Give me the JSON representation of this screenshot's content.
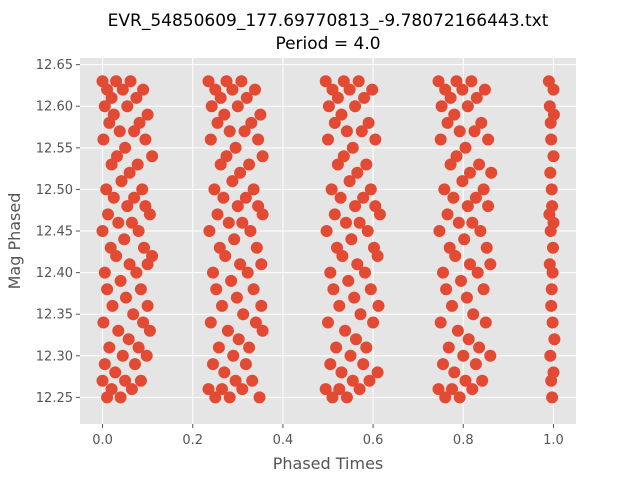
{
  "chart_data": {
    "type": "scatter",
    "title": "EVR_54850609_177.69770813_-9.78072166443.txt",
    "subtitle": "Period = 4.0",
    "xlabel": "Phased Times",
    "ylabel": "Mag Phased",
    "xlim": [
      -0.05,
      1.05
    ],
    "ylim": [
      12.218,
      12.658
    ],
    "xticks": [
      0.0,
      0.2,
      0.4,
      0.6,
      0.8,
      1.0
    ],
    "xtick_labels": [
      "0.0",
      "0.2",
      "0.4",
      "0.6",
      "0.8",
      "1.0"
    ],
    "yticks": [
      12.25,
      12.3,
      12.35,
      12.4,
      12.45,
      12.5,
      12.55,
      12.6,
      12.65
    ],
    "ytick_labels": [
      "12.25",
      "12.30",
      "12.35",
      "12.40",
      "12.45",
      "12.50",
      "12.55",
      "12.60",
      "12.65"
    ],
    "grid": true,
    "legend": "none",
    "colors": {
      "background": "#e5e5e5",
      "grid": "#ffffff",
      "marker": "#e24a33",
      "text": "#555555"
    },
    "series": [
      {
        "points": [
          [
            0.0,
            12.63
          ],
          [
            0.0,
            12.27
          ],
          [
            0.0,
            12.45
          ],
          [
            0.002,
            12.56
          ],
          [
            0.002,
            12.34
          ],
          [
            0.005,
            12.6
          ],
          [
            0.005,
            12.4
          ],
          [
            0.005,
            12.29
          ],
          [
            0.008,
            12.5
          ],
          [
            0.01,
            12.62
          ],
          [
            0.01,
            12.25
          ],
          [
            0.01,
            12.38
          ],
          [
            0.012,
            12.47
          ],
          [
            0.015,
            12.58
          ],
          [
            0.015,
            12.31
          ],
          [
            0.018,
            12.43
          ],
          [
            0.02,
            12.61
          ],
          [
            0.02,
            12.53
          ],
          [
            0.02,
            12.26
          ],
          [
            0.022,
            12.36
          ],
          [
            0.025,
            12.49
          ],
          [
            0.025,
            12.59
          ],
          [
            0.028,
            12.28
          ],
          [
            0.03,
            12.42
          ],
          [
            0.03,
            12.63
          ],
          [
            0.032,
            12.54
          ],
          [
            0.035,
            12.33
          ],
          [
            0.035,
            12.46
          ],
          [
            0.038,
            12.57
          ],
          [
            0.04,
            12.25
          ],
          [
            0.04,
            12.39
          ],
          [
            0.042,
            12.51
          ],
          [
            0.045,
            12.62
          ],
          [
            0.045,
            12.3
          ],
          [
            0.048,
            12.44
          ],
          [
            0.05,
            12.55
          ],
          [
            0.05,
            12.27
          ],
          [
            0.052,
            12.37
          ],
          [
            0.055,
            12.48
          ],
          [
            0.055,
            12.6
          ],
          [
            0.058,
            12.32
          ],
          [
            0.06,
            12.52
          ],
          [
            0.06,
            12.41
          ],
          [
            0.062,
            12.63
          ],
          [
            0.065,
            12.26
          ],
          [
            0.065,
            12.46
          ],
          [
            0.068,
            12.35
          ],
          [
            0.07,
            12.57
          ],
          [
            0.07,
            12.49
          ],
          [
            0.072,
            12.29
          ],
          [
            0.075,
            12.61
          ],
          [
            0.075,
            12.4
          ],
          [
            0.078,
            12.53
          ],
          [
            0.08,
            12.31
          ],
          [
            0.08,
            12.45
          ],
          [
            0.082,
            12.58
          ],
          [
            0.085,
            12.27
          ],
          [
            0.085,
            12.38
          ],
          [
            0.088,
            12.5
          ],
          [
            0.09,
            12.62
          ],
          [
            0.09,
            12.34
          ],
          [
            0.092,
            12.43
          ],
          [
            0.095,
            12.56
          ],
          [
            0.095,
            12.48
          ],
          [
            0.098,
            12.3
          ],
          [
            0.1,
            12.59
          ],
          [
            0.1,
            12.41
          ],
          [
            0.1,
            12.36
          ],
          [
            0.105,
            12.47
          ],
          [
            0.105,
            12.33
          ],
          [
            0.11,
            12.42
          ],
          [
            0.11,
            12.54
          ],
          [
            0.235,
            12.63
          ],
          [
            0.235,
            12.26
          ],
          [
            0.237,
            12.45
          ],
          [
            0.24,
            12.56
          ],
          [
            0.24,
            12.34
          ],
          [
            0.242,
            12.6
          ],
          [
            0.245,
            12.4
          ],
          [
            0.245,
            12.29
          ],
          [
            0.248,
            12.5
          ],
          [
            0.25,
            12.62
          ],
          [
            0.25,
            12.25
          ],
          [
            0.252,
            12.38
          ],
          [
            0.255,
            12.47
          ],
          [
            0.255,
            12.58
          ],
          [
            0.258,
            12.31
          ],
          [
            0.26,
            12.43
          ],
          [
            0.262,
            12.61
          ],
          [
            0.262,
            12.53
          ],
          [
            0.265,
            12.26
          ],
          [
            0.265,
            12.36
          ],
          [
            0.268,
            12.49
          ],
          [
            0.27,
            12.59
          ],
          [
            0.27,
            12.28
          ],
          [
            0.272,
            12.42
          ],
          [
            0.275,
            12.63
          ],
          [
            0.275,
            12.54
          ],
          [
            0.278,
            12.33
          ],
          [
            0.28,
            12.46
          ],
          [
            0.282,
            12.57
          ],
          [
            0.282,
            12.25
          ],
          [
            0.285,
            12.39
          ],
          [
            0.288,
            12.51
          ],
          [
            0.288,
            12.62
          ],
          [
            0.29,
            12.3
          ],
          [
            0.292,
            12.44
          ],
          [
            0.295,
            12.55
          ],
          [
            0.295,
            12.27
          ],
          [
            0.298,
            12.37
          ],
          [
            0.3,
            12.48
          ],
          [
            0.3,
            12.6
          ],
          [
            0.302,
            12.32
          ],
          [
            0.305,
            12.52
          ],
          [
            0.305,
            12.41
          ],
          [
            0.308,
            12.63
          ],
          [
            0.31,
            12.26
          ],
          [
            0.31,
            12.46
          ],
          [
            0.312,
            12.35
          ],
          [
            0.315,
            12.57
          ],
          [
            0.318,
            12.49
          ],
          [
            0.318,
            12.29
          ],
          [
            0.32,
            12.61
          ],
          [
            0.322,
            12.4
          ],
          [
            0.325,
            12.53
          ],
          [
            0.325,
            12.31
          ],
          [
            0.328,
            12.45
          ],
          [
            0.33,
            12.58
          ],
          [
            0.332,
            12.27
          ],
          [
            0.335,
            12.38
          ],
          [
            0.335,
            12.5
          ],
          [
            0.338,
            12.62
          ],
          [
            0.34,
            12.34
          ],
          [
            0.342,
            12.43
          ],
          [
            0.345,
            12.56
          ],
          [
            0.345,
            12.48
          ],
          [
            0.348,
            12.25
          ],
          [
            0.35,
            12.59
          ],
          [
            0.352,
            12.41
          ],
          [
            0.352,
            12.36
          ],
          [
            0.355,
            12.47
          ],
          [
            0.355,
            12.33
          ],
          [
            0.355,
            12.54
          ],
          [
            0.495,
            12.63
          ],
          [
            0.495,
            12.26
          ],
          [
            0.497,
            12.45
          ],
          [
            0.5,
            12.56
          ],
          [
            0.5,
            12.34
          ],
          [
            0.502,
            12.6
          ],
          [
            0.505,
            12.4
          ],
          [
            0.505,
            12.29
          ],
          [
            0.508,
            12.5
          ],
          [
            0.51,
            12.62
          ],
          [
            0.51,
            12.25
          ],
          [
            0.512,
            12.38
          ],
          [
            0.515,
            12.47
          ],
          [
            0.515,
            12.58
          ],
          [
            0.518,
            12.31
          ],
          [
            0.52,
            12.43
          ],
          [
            0.522,
            12.61
          ],
          [
            0.522,
            12.53
          ],
          [
            0.525,
            12.26
          ],
          [
            0.525,
            12.36
          ],
          [
            0.528,
            12.49
          ],
          [
            0.53,
            12.59
          ],
          [
            0.53,
            12.28
          ],
          [
            0.532,
            12.42
          ],
          [
            0.535,
            12.63
          ],
          [
            0.535,
            12.54
          ],
          [
            0.538,
            12.33
          ],
          [
            0.54,
            12.46
          ],
          [
            0.542,
            12.57
          ],
          [
            0.542,
            12.25
          ],
          [
            0.545,
            12.39
          ],
          [
            0.548,
            12.51
          ],
          [
            0.548,
            12.62
          ],
          [
            0.55,
            12.3
          ],
          [
            0.552,
            12.44
          ],
          [
            0.555,
            12.55
          ],
          [
            0.555,
            12.27
          ],
          [
            0.558,
            12.37
          ],
          [
            0.56,
            12.48
          ],
          [
            0.56,
            12.6
          ],
          [
            0.562,
            12.32
          ],
          [
            0.565,
            12.52
          ],
          [
            0.565,
            12.41
          ],
          [
            0.568,
            12.63
          ],
          [
            0.57,
            12.26
          ],
          [
            0.57,
            12.46
          ],
          [
            0.572,
            12.35
          ],
          [
            0.575,
            12.57
          ],
          [
            0.578,
            12.49
          ],
          [
            0.578,
            12.29
          ],
          [
            0.58,
            12.61
          ],
          [
            0.582,
            12.4
          ],
          [
            0.585,
            12.53
          ],
          [
            0.585,
            12.31
          ],
          [
            0.588,
            12.45
          ],
          [
            0.59,
            12.58
          ],
          [
            0.592,
            12.27
          ],
          [
            0.595,
            12.38
          ],
          [
            0.595,
            12.5
          ],
          [
            0.598,
            12.62
          ],
          [
            0.6,
            12.34
          ],
          [
            0.602,
            12.43
          ],
          [
            0.605,
            12.56
          ],
          [
            0.605,
            12.48
          ],
          [
            0.61,
            12.28
          ],
          [
            0.61,
            12.42
          ],
          [
            0.612,
            12.36
          ],
          [
            0.615,
            12.47
          ],
          [
            0.745,
            12.63
          ],
          [
            0.745,
            12.26
          ],
          [
            0.747,
            12.45
          ],
          [
            0.75,
            12.56
          ],
          [
            0.75,
            12.34
          ],
          [
            0.752,
            12.6
          ],
          [
            0.755,
            12.4
          ],
          [
            0.755,
            12.29
          ],
          [
            0.758,
            12.5
          ],
          [
            0.76,
            12.62
          ],
          [
            0.76,
            12.25
          ],
          [
            0.762,
            12.38
          ],
          [
            0.765,
            12.47
          ],
          [
            0.765,
            12.58
          ],
          [
            0.768,
            12.31
          ],
          [
            0.77,
            12.43
          ],
          [
            0.772,
            12.61
          ],
          [
            0.772,
            12.53
          ],
          [
            0.775,
            12.26
          ],
          [
            0.775,
            12.36
          ],
          [
            0.778,
            12.49
          ],
          [
            0.78,
            12.59
          ],
          [
            0.78,
            12.28
          ],
          [
            0.782,
            12.42
          ],
          [
            0.785,
            12.63
          ],
          [
            0.785,
            12.54
          ],
          [
            0.788,
            12.33
          ],
          [
            0.79,
            12.46
          ],
          [
            0.792,
            12.57
          ],
          [
            0.792,
            12.25
          ],
          [
            0.795,
            12.39
          ],
          [
            0.798,
            12.51
          ],
          [
            0.798,
            12.62
          ],
          [
            0.8,
            12.3
          ],
          [
            0.802,
            12.44
          ],
          [
            0.805,
            12.55
          ],
          [
            0.805,
            12.27
          ],
          [
            0.808,
            12.37
          ],
          [
            0.81,
            12.48
          ],
          [
            0.81,
            12.6
          ],
          [
            0.812,
            12.32
          ],
          [
            0.815,
            12.52
          ],
          [
            0.815,
            12.41
          ],
          [
            0.818,
            12.63
          ],
          [
            0.82,
            12.26
          ],
          [
            0.82,
            12.46
          ],
          [
            0.822,
            12.35
          ],
          [
            0.825,
            12.57
          ],
          [
            0.828,
            12.49
          ],
          [
            0.828,
            12.29
          ],
          [
            0.83,
            12.61
          ],
          [
            0.832,
            12.4
          ],
          [
            0.835,
            12.53
          ],
          [
            0.835,
            12.31
          ],
          [
            0.838,
            12.45
          ],
          [
            0.84,
            12.58
          ],
          [
            0.842,
            12.27
          ],
          [
            0.845,
            12.38
          ],
          [
            0.845,
            12.5
          ],
          [
            0.848,
            12.62
          ],
          [
            0.85,
            12.34
          ],
          [
            0.852,
            12.43
          ],
          [
            0.855,
            12.56
          ],
          [
            0.855,
            12.48
          ],
          [
            0.86,
            12.3
          ],
          [
            0.86,
            12.41
          ],
          [
            0.862,
            12.52
          ],
          [
            0.99,
            12.63
          ],
          [
            0.992,
            12.6
          ],
          [
            0.995,
            12.56
          ],
          [
            0.993,
            12.52
          ],
          [
            0.997,
            12.48
          ],
          [
            0.994,
            12.45
          ],
          [
            0.992,
            12.41
          ],
          [
            0.996,
            12.38
          ],
          [
            0.998,
            12.34
          ],
          [
            0.993,
            12.3
          ],
          [
            0.995,
            12.27
          ],
          [
            0.997,
            12.25
          ],
          [
            1.0,
            12.62
          ],
          [
            1.0,
            12.54
          ],
          [
            1.0,
            12.46
          ],
          [
            0.998,
            12.4
          ],
          [
            1.002,
            12.32
          ],
          [
            1.0,
            12.28
          ],
          [
            0.994,
            12.58
          ],
          [
            0.996,
            12.5
          ],
          [
            0.999,
            12.43
          ],
          [
            0.995,
            12.36
          ],
          [
            1.001,
            12.59
          ],
          [
            0.991,
            12.47
          ]
        ]
      }
    ]
  }
}
